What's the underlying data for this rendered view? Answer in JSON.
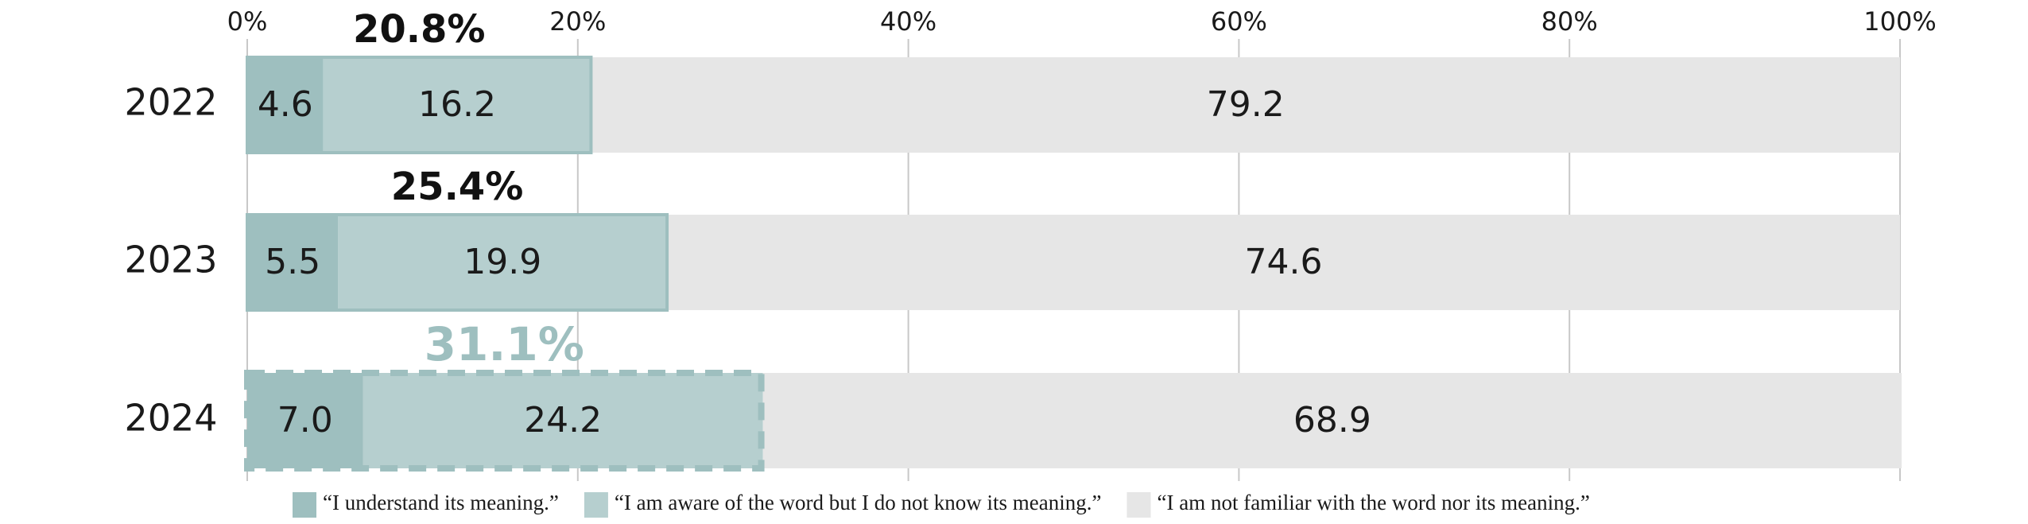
{
  "chart_data": {
    "type": "stacked-barh",
    "categories": [
      "2022",
      "2023",
      "2024"
    ],
    "series": [
      {
        "name": "“I understand its meaning.”",
        "color": "#9ebfbf",
        "values": [
          4.6,
          5.5,
          7.0
        ],
        "value_labels": [
          "4.6",
          "5.5",
          "7.0"
        ]
      },
      {
        "name": "“I am aware of the word but I do not know its meaning.”",
        "color": "#b6cfcf",
        "values": [
          16.2,
          19.9,
          24.2
        ]
      },
      {
        "name": "“I am not familiar with the word nor its meaning.”",
        "color": "#e6e6e6",
        "values": [
          79.2,
          74.6,
          68.9
        ]
      }
    ],
    "totals": {
      "values": [
        20.8,
        25.4,
        31.1
      ],
      "value_labels": [
        "20.8%",
        "25.4%",
        "31.1%"
      ],
      "colors": [
        "#111111",
        "#111111",
        "#9ebfbf"
      ],
      "outline_styles": [
        "solid",
        "solid",
        "dashed"
      ]
    },
    "xlim": [
      0,
      100
    ],
    "xticks": [
      {
        "value": 0,
        "label": "0%"
      },
      {
        "value": 20,
        "label": "20%"
      },
      {
        "value": 40,
        "label": "40%"
      },
      {
        "value": 60,
        "label": "60%"
      },
      {
        "value": 80,
        "label": "80%"
      },
      {
        "value": 100,
        "label": "100%"
      }
    ],
    "grid": true,
    "legend": "bottom"
  }
}
